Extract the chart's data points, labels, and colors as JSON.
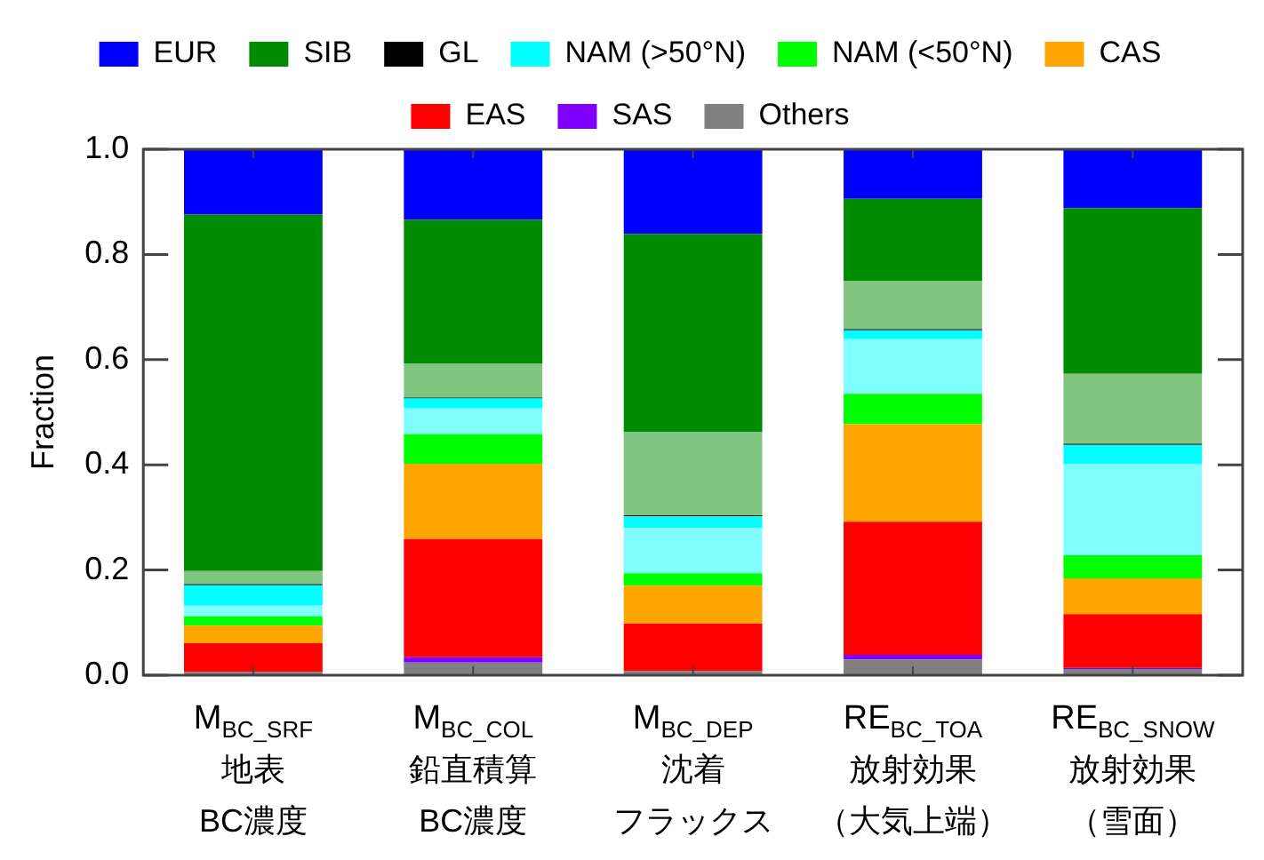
{
  "chart_data": {
    "type": "bar",
    "stacked": true,
    "ylabel": "Fraction",
    "legend": "top",
    "categories": [
      "M$_{BC_SRF}$\n地表BC濃度",
      "M$_{BC_COL}$\n鉛直積算BC濃度",
      "M$_{BC_DEP}$\n沈着フラックス",
      "RE$_{BC_TOA}$\n放射効果（大気上端）",
      "RE$_{BC_SNOW}$\n放射効果（雪面）"
    ],
    "ylim": [
      0,
      1
    ],
    "yticks": [
      {
        "value": 0,
        "label": "0.0"
      },
      0.2,
      0.4,
      0.6,
      0.8,
      {
        "value": 1,
        "label": "1.0"
      }
    ],
    "series": [
      {
        "name": "Others",
        "color": "#808080",
        "values": [
          0.006,
          0.024,
          0.008,
          0.03,
          0.012
        ]
      },
      {
        "name": "SAS",
        "color": "#7f00ff",
        "values": [
          null,
          0.01,
          null,
          0.009,
          0.002
        ]
      },
      {
        "name": "EAS",
        "color": "#ff0000",
        "values": [
          0.055,
          0.225,
          0.09,
          0.253,
          0.102
        ]
      },
      {
        "name": "CAS",
        "color": "#ffa500",
        "values": [
          0.033,
          0.143,
          0.072,
          0.185,
          0.068
        ]
      },
      {
        "name": "NAM (<50°N)",
        "color": "#00ff00",
        "values": [
          0.018,
          0.056,
          0.024,
          0.058,
          0.044
        ]
      },
      {
        "color": "#80ffff",
        "values": [
          0.02,
          0.049,
          0.086,
          0.104,
          0.174
        ]
      },
      {
        "name": "NAM (>50°N)",
        "color": "#00ffff",
        "values": [
          0.039,
          0.019,
          0.022,
          0.017,
          0.036
        ]
      },
      {
        "name": "GL",
        "color": "#000000",
        "values": [
          0.002,
          0.002,
          0.002,
          0.002,
          0.002
        ]
      },
      {
        "color": "#80c680",
        "values": [
          0.025,
          0.064,
          0.158,
          0.092,
          0.133
        ]
      },
      {
        "name": "SIB",
        "color": "#008c00",
        "values": [
          0.678,
          0.274,
          0.377,
          0.156,
          0.315
        ]
      },
      {
        "name": "EUR",
        "color": "#0000ff",
        "values": [
          0.126,
          0.134,
          0.16,
          0.094,
          0.112
        ]
      }
    ]
  }
}
